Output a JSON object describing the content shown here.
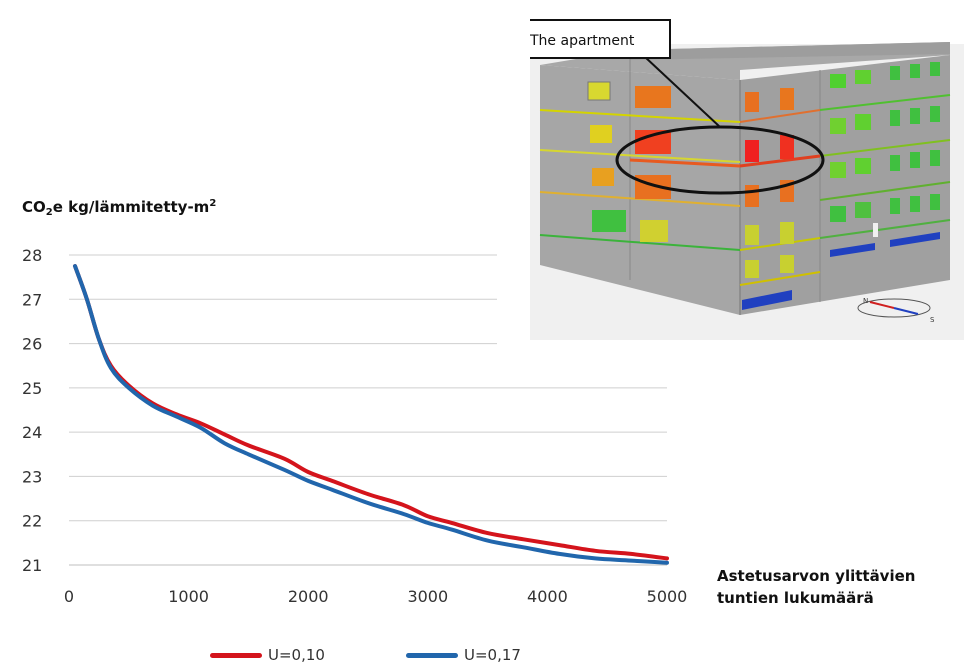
{
  "chart_data": {
    "type": "line",
    "ylabel": {
      "main": "CO",
      "sub": "2",
      "rest": "e kg/lämmitetty-m",
      "sup": "2"
    },
    "xlabel": [
      "Astetusarvon ylittävien",
      "tuntien lukumäärä"
    ],
    "xlim": [
      0,
      5000
    ],
    "ylim": [
      21,
      28
    ],
    "x_ticks": [
      "0",
      "1000",
      "2000",
      "3000",
      "4000",
      "5000"
    ],
    "y_ticks": [
      "28",
      "27",
      "26",
      "25",
      "24",
      "23",
      "22",
      "21"
    ],
    "grid": "horizontal",
    "legend_position": "bottom",
    "series": [
      {
        "name": "U=0,10",
        "color": "#d4141c",
        "points": [
          [
            50,
            27.75
          ],
          [
            150,
            27.0
          ],
          [
            250,
            26.1
          ],
          [
            350,
            25.5
          ],
          [
            500,
            25.05
          ],
          [
            700,
            24.65
          ],
          [
            900,
            24.4
          ],
          [
            1100,
            24.2
          ],
          [
            1300,
            23.95
          ],
          [
            1500,
            23.7
          ],
          [
            1800,
            23.4
          ],
          [
            2000,
            23.1
          ],
          [
            2200,
            22.9
          ],
          [
            2500,
            22.6
          ],
          [
            2800,
            22.35
          ],
          [
            3000,
            22.1
          ],
          [
            3200,
            21.95
          ],
          [
            3500,
            21.72
          ],
          [
            3800,
            21.58
          ],
          [
            4100,
            21.45
          ],
          [
            4400,
            21.32
          ],
          [
            4700,
            21.25
          ],
          [
            5000,
            21.15
          ]
        ]
      },
      {
        "name": "U=0,17",
        "color": "#2166ac",
        "points": [
          [
            50,
            27.75
          ],
          [
            150,
            27.0
          ],
          [
            250,
            26.1
          ],
          [
            350,
            25.45
          ],
          [
            500,
            25.0
          ],
          [
            700,
            24.6
          ],
          [
            900,
            24.35
          ],
          [
            1100,
            24.1
          ],
          [
            1300,
            23.75
          ],
          [
            1500,
            23.5
          ],
          [
            1800,
            23.15
          ],
          [
            2000,
            22.9
          ],
          [
            2200,
            22.7
          ],
          [
            2500,
            22.4
          ],
          [
            2800,
            22.15
          ],
          [
            3000,
            21.95
          ],
          [
            3200,
            21.8
          ],
          [
            3500,
            21.55
          ],
          [
            3800,
            21.4
          ],
          [
            4100,
            21.25
          ],
          [
            4400,
            21.15
          ],
          [
            4700,
            21.1
          ],
          [
            5000,
            21.05
          ]
        ]
      }
    ]
  },
  "building_image": {
    "callout_label": "The apartment",
    "compass_letters": [
      "N",
      "S"
    ]
  }
}
